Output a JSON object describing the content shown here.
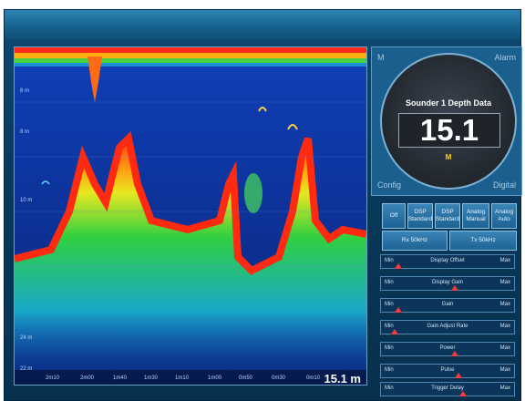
{
  "sonar": {
    "depth_labels": [
      "6 m",
      "8 m",
      "10 m",
      "24 m",
      "22 m"
    ],
    "time_labels": [
      "2m10",
      "2m00",
      "1m40",
      "1m30",
      "1m10",
      "1m00",
      "0m50",
      "0m30",
      "0m10"
    ],
    "depth_readout": "15.1 m"
  },
  "sounder": {
    "corner_top_left": "M",
    "corner_top_right": "Alarm",
    "corner_bottom_left": "Config",
    "corner_bottom_right": "Digital",
    "title": "Sounder 1 Depth Data",
    "value": "15.1",
    "unit": "M"
  },
  "buttons": [
    {
      "label": "Off"
    },
    {
      "label": "DSP Standard"
    },
    {
      "label": "DSP Standard"
    },
    {
      "label": "Analog Manual"
    },
    {
      "label": "Analog Auto"
    },
    {
      "label": "Rx 50kHz"
    },
    {
      "label": "Tx 50kHz"
    }
  ],
  "sliders": [
    {
      "label": "Display Offset",
      "min": "Min",
      "max": "Max",
      "level": 0.08
    },
    {
      "label": "Display Gain",
      "min": "Min",
      "max": "Max",
      "level": 0.55
    },
    {
      "label": "Gain",
      "min": "Min",
      "max": "Max",
      "level": 0.08
    },
    {
      "label": "Gain Adjust Rate",
      "min": "Min",
      "max": "Max",
      "level": 0.05
    },
    {
      "label": "Power",
      "min": "Min",
      "max": "Max",
      "level": 0.55
    },
    {
      "label": "Pulse",
      "min": "Min",
      "max": "Max",
      "level": 0.58
    },
    {
      "label": "Trigger Delay",
      "min": "Min",
      "max": "Max",
      "level": 0.62
    }
  ],
  "colors": {
    "accent": "#1d6393",
    "thumb": "#ff3b3b",
    "unit": "#ffd200"
  }
}
